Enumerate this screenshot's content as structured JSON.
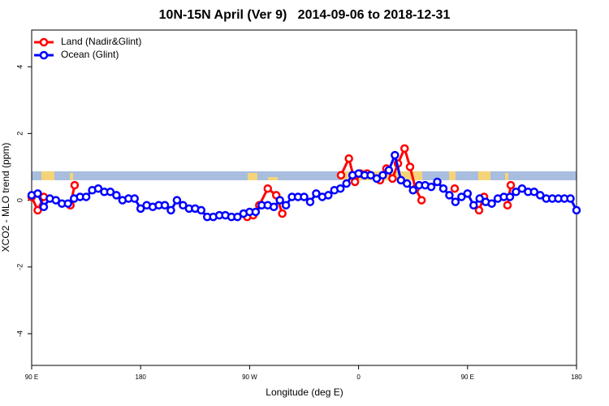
{
  "chart_data": {
    "type": "line",
    "title": "10N-15N April (Ver 9)   2014-09-06 to 2018-12-31",
    "x_label": "Longitude (deg E)",
    "y_label": "XCO2 - MLO trend (ppm)",
    "xlim": [
      90,
      540
    ],
    "xticks": [
      {
        "value": 90,
        "label": "90 E"
      },
      180,
      {
        "value": 270,
        "label": "90 W"
      },
      {
        "value": 360,
        "label": "0"
      },
      {
        "value": 450,
        "label": "90 E"
      },
      {
        "value": 540,
        "label": "180"
      }
    ],
    "ylim": [
      -4.95,
      5.1
    ],
    "yticks": [
      -4,
      -2,
      0,
      2,
      4
    ],
    "legend": "top-left",
    "series": [
      {
        "name": "Land (Nadir&Glint)",
        "color": "#ff0000",
        "x": [
          90,
          95,
          100,
          110,
          122,
          125.5,
          200,
          268,
          273,
          278,
          285,
          292,
          297,
          320,
          345.5,
          352,
          357,
          361.6,
          367,
          372,
          377.7,
          383,
          388,
          392.5,
          398,
          402.5,
          407,
          412,
          430,
          439.4,
          450,
          459.5,
          463.6,
          475,
          483,
          485.7
        ],
        "values": [
          0.1,
          -0.3,
          0.1,
          null,
          -0.15,
          0.45,
          null,
          -0.5,
          -0.45,
          -0.15,
          0.35,
          0.15,
          -0.4,
          null,
          0.75,
          1.25,
          0.55,
          0.8,
          0.8,
          null,
          0.6,
          0.95,
          0.65,
          1.1,
          1.55,
          1.0,
          0.35,
          0.0,
          null,
          0.35,
          null,
          -0.3,
          0.1,
          null,
          -0.15,
          0.45
        ]
      },
      {
        "name": "Ocean (Glint)",
        "color": "#0000ff",
        "x": [
          90,
          95,
          100,
          105,
          110,
          115,
          120,
          125,
          130,
          135,
          140,
          145,
          150,
          155,
          160,
          165,
          170,
          175,
          180,
          185,
          190,
          195,
          200,
          205,
          210,
          215,
          220,
          225,
          230,
          235,
          240,
          245,
          250,
          255,
          260,
          265,
          270,
          275,
          280,
          285,
          290,
          295,
          300,
          305,
          310,
          315,
          320,
          325,
          330,
          335,
          340,
          345,
          350,
          355,
          360,
          365,
          370,
          375,
          380,
          385,
          390,
          395,
          400,
          405,
          410,
          415,
          420,
          425,
          430,
          435,
          440,
          445,
          450,
          455,
          460,
          465,
          470,
          475,
          480,
          485,
          490,
          495,
          500,
          505,
          510,
          515,
          520,
          525,
          530,
          535,
          540
        ],
        "values": [
          0.15,
          0.2,
          -0.2,
          0.05,
          0.0,
          -0.1,
          -0.1,
          0.05,
          0.1,
          0.1,
          0.3,
          0.35,
          0.25,
          0.25,
          0.15,
          0.0,
          0.05,
          0.05,
          -0.25,
          -0.15,
          -0.2,
          -0.15,
          -0.15,
          -0.3,
          0.0,
          -0.15,
          -0.25,
          -0.25,
          -0.3,
          -0.5,
          -0.5,
          -0.45,
          -0.45,
          -0.5,
          -0.5,
          -0.4,
          -0.35,
          -0.35,
          -0.15,
          -0.15,
          -0.2,
          0.0,
          -0.15,
          0.1,
          0.1,
          0.1,
          -0.05,
          0.2,
          0.1,
          0.15,
          0.3,
          0.35,
          0.5,
          0.75,
          0.8,
          0.75,
          0.75,
          0.65,
          0.75,
          0.9,
          1.35,
          0.6,
          0.5,
          0.3,
          0.45,
          0.45,
          0.4,
          0.55,
          0.35,
          0.15,
          -0.05,
          0.1,
          0.2,
          -0.15,
          0.05,
          -0.05,
          -0.1,
          0.05,
          0.1,
          0.1,
          0.25,
          0.35,
          0.25,
          0.25,
          0.15,
          0.05,
          0.05,
          0.05,
          0.05,
          0.05,
          -0.3
        ]
      }
    ]
  }
}
